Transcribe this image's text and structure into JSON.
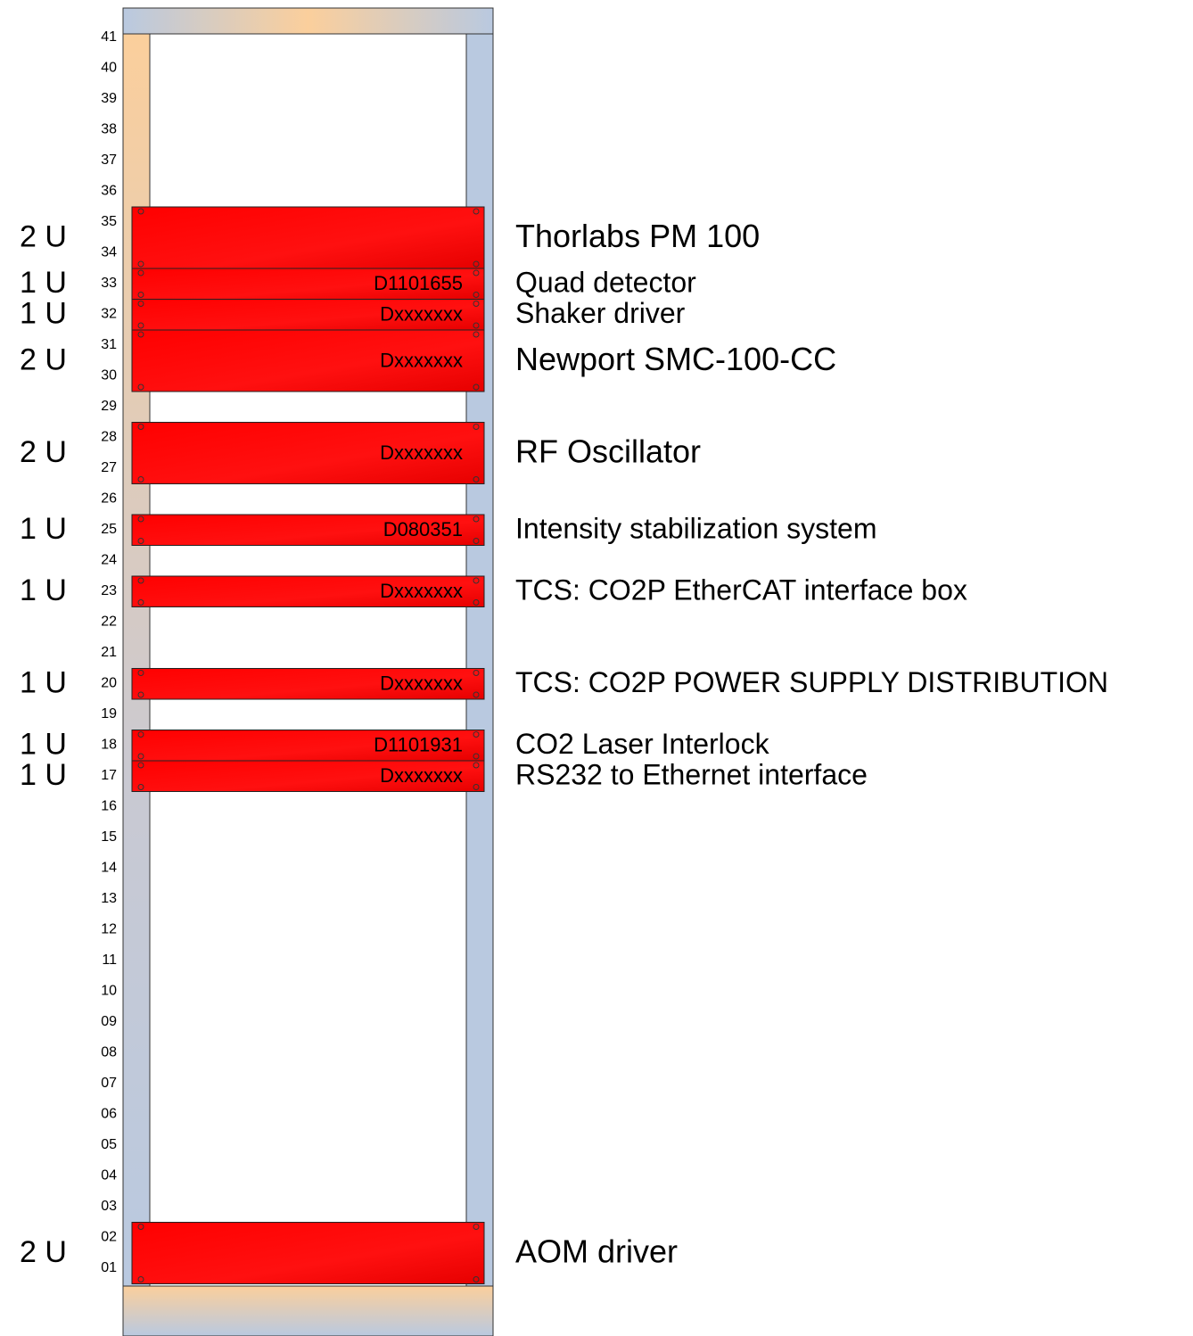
{
  "rack": {
    "units": [
      "41",
      "40",
      "39",
      "38",
      "37",
      "36",
      "35",
      "34",
      "33",
      "32",
      "31",
      "30",
      "29",
      "28",
      "27",
      "26",
      "25",
      "24",
      "23",
      "22",
      "21",
      "20",
      "19",
      "18",
      "17",
      "16",
      "15",
      "14",
      "13",
      "12",
      "11",
      "10",
      "09",
      "08",
      "07",
      "06",
      "05",
      "04",
      "03",
      "02",
      "01"
    ],
    "devices": [
      {
        "size": "2 U",
        "name": "Thorlabs PM 100"
      },
      {
        "size": "1 U",
        "part": "D1101655",
        "name": "Quad detector"
      },
      {
        "size": "1 U",
        "part": "Dxxxxxxx",
        "name": "Shaker driver"
      },
      {
        "size": "2 U",
        "part": "Dxxxxxxx",
        "name": "Newport SMC-100-CC"
      },
      {
        "size": "2 U",
        "part": "Dxxxxxxx",
        "name": "RF Oscillator"
      },
      {
        "size": "1 U",
        "part": "D080351",
        "name": "Intensity stabilization system"
      },
      {
        "size": "1 U",
        "part": "Dxxxxxxx",
        "name": "TCS: CO2P EtherCAT interface box"
      },
      {
        "size": "1 U",
        "part": "Dxxxxxxx",
        "name": "TCS: CO2P POWER SUPPLY DISTRIBUTION"
      },
      {
        "size": "1 U",
        "part": "D1101931",
        "name": "CO2 Laser Interlock"
      },
      {
        "size": "1 U",
        "part": "Dxxxxxxx",
        "name": "RS232 to Ethernet interface"
      },
      {
        "size": "2 U",
        "name": "AOM driver"
      }
    ]
  }
}
